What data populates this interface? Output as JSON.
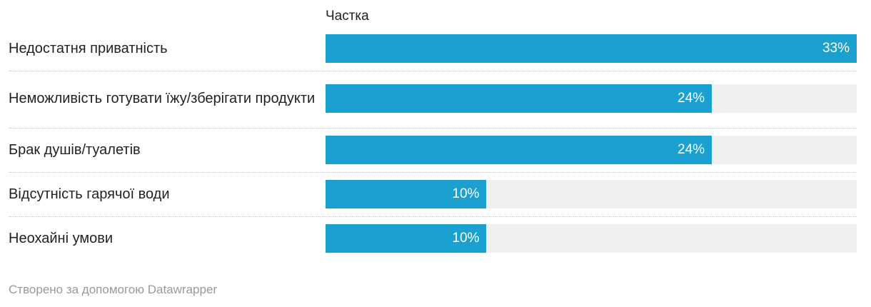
{
  "chart_data": {
    "type": "bar",
    "orientation": "horizontal",
    "column_title": "Частка",
    "categories": [
      "Недостатня приватність",
      "Неможливість готувати їжу/зберігати продукти",
      "Брак душів/туалетів",
      "Відсутність гарячої води",
      "Неохайні умови"
    ],
    "values": [
      33,
      24,
      24,
      10,
      10
    ],
    "value_labels": [
      "33%",
      "24%",
      "24%",
      "10%",
      "10%"
    ],
    "color": "#1ba1cf",
    "xlim": [
      0,
      33
    ],
    "credit": "Створено за допомогою Datawrapper"
  }
}
